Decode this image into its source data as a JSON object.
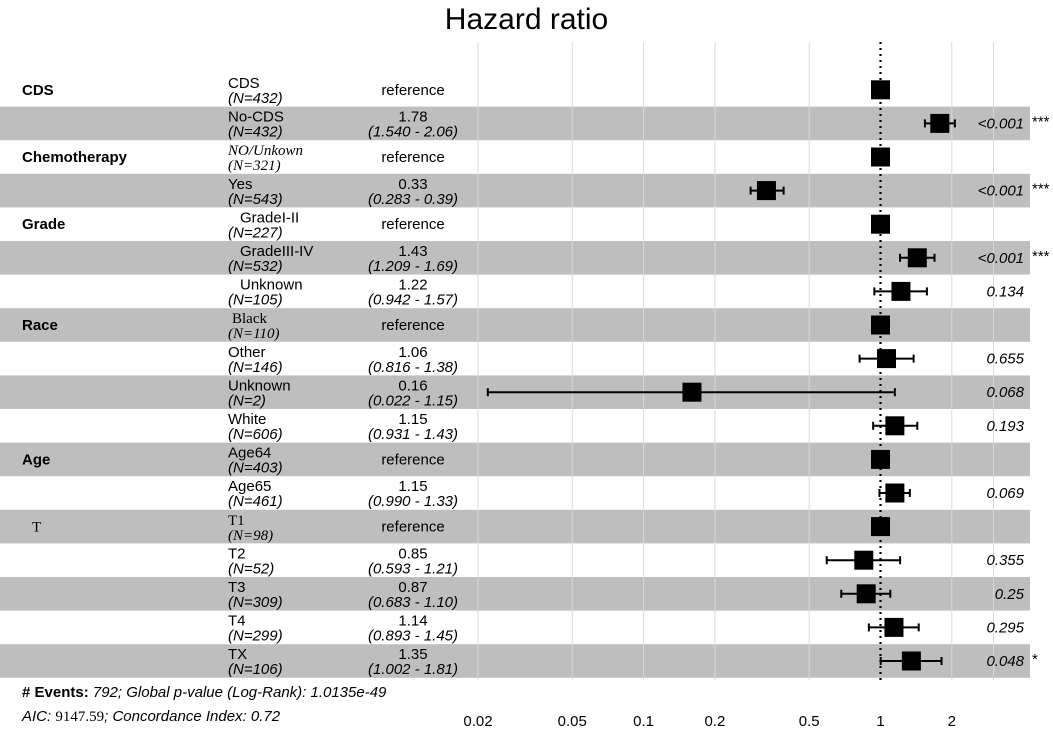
{
  "chart_data": {
    "type": "forest",
    "title": "Hazard ratio",
    "x_scale": "log",
    "xlim": [
      0.02,
      3
    ],
    "xticks": [
      "0.02",
      "0.05",
      "0.1",
      "0.2",
      "0.5",
      "1",
      "2"
    ],
    "reference_line": 1,
    "rows": [
      {
        "variable": "CDS",
        "level": "CDS",
        "n": "(N=432)",
        "hr_text": "reference",
        "ci_text": "",
        "p_text": "",
        "stars": "",
        "hr": 1,
        "lo": null,
        "hi": null
      },
      {
        "variable": "",
        "level": "No-CDS",
        "n": "(N=432)",
        "hr_text": "1.78",
        "ci_text": "(1.540 - 2.06)",
        "p_text": "<0.001",
        "stars": "***",
        "hr": 1.78,
        "lo": 1.54,
        "hi": 2.06
      },
      {
        "variable": "Chemotherapy",
        "level": "NO/Unkown",
        "n": "(N=321)",
        "hr_text": "reference",
        "ci_text": "",
        "p_text": "",
        "stars": "",
        "hr": 1,
        "lo": null,
        "hi": null,
        "serif": true
      },
      {
        "variable": "",
        "level": "Yes",
        "n": "(N=543)",
        "hr_text": "0.33",
        "ci_text": "(0.283 - 0.39)",
        "p_text": "<0.001",
        "stars": "***",
        "hr": 0.33,
        "lo": 0.283,
        "hi": 0.39
      },
      {
        "variable": "Grade",
        "level": "GradeI-II",
        "n": "(N=227)",
        "hr_text": "reference",
        "ci_text": "",
        "p_text": "",
        "stars": "",
        "hr": 1,
        "lo": null,
        "hi": null
      },
      {
        "variable": "",
        "level": "GradeIII-IV",
        "n": "(N=532)",
        "hr_text": "1.43",
        "ci_text": "(1.209 - 1.69)",
        "p_text": "<0.001",
        "stars": "***",
        "hr": 1.43,
        "lo": 1.209,
        "hi": 1.69
      },
      {
        "variable": "",
        "level": "Unknown",
        "n": "(N=105)",
        "hr_text": "1.22",
        "ci_text": "(0.942 - 1.57)",
        "p_text": "0.134",
        "stars": "",
        "hr": 1.22,
        "lo": 0.942,
        "hi": 1.57
      },
      {
        "variable": "Race",
        "level": "Black",
        "n": "(N=110)",
        "hr_text": "reference",
        "ci_text": "",
        "p_text": "",
        "stars": "",
        "hr": 1,
        "lo": null,
        "hi": null,
        "serif": true
      },
      {
        "variable": "",
        "level": "Other",
        "n": "(N=146)",
        "hr_text": "1.06",
        "ci_text": "(0.816 - 1.38)",
        "p_text": "0.655",
        "stars": "",
        "hr": 1.06,
        "lo": 0.816,
        "hi": 1.38
      },
      {
        "variable": "",
        "level": "Unknown",
        "n": "(N=2)",
        "hr_text": "0.16",
        "ci_text": "(0.022 - 1.15)",
        "p_text": "0.068",
        "stars": "",
        "hr": 0.16,
        "lo": 0.022,
        "hi": 1.15
      },
      {
        "variable": "",
        "level": "White",
        "n": "(N=606)",
        "hr_text": "1.15",
        "ci_text": "(0.931 - 1.43)",
        "p_text": "0.193",
        "stars": "",
        "hr": 1.15,
        "lo": 0.931,
        "hi": 1.43
      },
      {
        "variable": "Age",
        "level": "Age64",
        "n": "(N=403)",
        "hr_text": "reference",
        "ci_text": "",
        "p_text": "",
        "stars": "",
        "hr": 1,
        "lo": null,
        "hi": null
      },
      {
        "variable": "",
        "level": "Age65",
        "n": "(N=461)",
        "hr_text": "1.15",
        "ci_text": "(0.990 - 1.33)",
        "p_text": "0.069",
        "stars": "",
        "hr": 1.15,
        "lo": 0.99,
        "hi": 1.33
      },
      {
        "variable": "T",
        "level": "T1",
        "n": "(N=98)",
        "hr_text": "reference",
        "ci_text": "",
        "p_text": "",
        "stars": "",
        "hr": 1,
        "lo": null,
        "hi": null,
        "serif": true
      },
      {
        "variable": "",
        "level": "T2",
        "n": "(N=52)",
        "hr_text": "0.85",
        "ci_text": "(0.593 - 1.21)",
        "p_text": "0.355",
        "stars": "",
        "hr": 0.85,
        "lo": 0.593,
        "hi": 1.21
      },
      {
        "variable": "",
        "level": "T3",
        "n": "(N=309)",
        "hr_text": "0.87",
        "ci_text": "(0.683 - 1.10)",
        "p_text": "0.25",
        "stars": "",
        "hr": 0.87,
        "lo": 0.683,
        "hi": 1.1
      },
      {
        "variable": "",
        "level": "T4",
        "n": "(N=299)",
        "hr_text": "1.14",
        "ci_text": "(0.893 - 1.45)",
        "p_text": "0.295",
        "stars": "",
        "hr": 1.14,
        "lo": 0.893,
        "hi": 1.45
      },
      {
        "variable": "",
        "level": "TX",
        "n": "(N=106)",
        "hr_text": "1.35",
        "ci_text": "(1.002 - 1.81)",
        "p_text": "0.048",
        "stars": "*",
        "hr": 1.35,
        "lo": 1.002,
        "hi": 1.81
      }
    ],
    "footer": {
      "line1_label": "# Events:",
      "line1_value": "792; Global p-value (Log-Rank): 1.0135e-49",
      "line2_label": "AIC:",
      "line2_aic": "9147.59",
      "line2_rest": "; Concordance Index: 0.72"
    }
  },
  "colors": {
    "stripe": "#bebebe",
    "grid": "#d9d9d9",
    "mark": "#000000"
  }
}
